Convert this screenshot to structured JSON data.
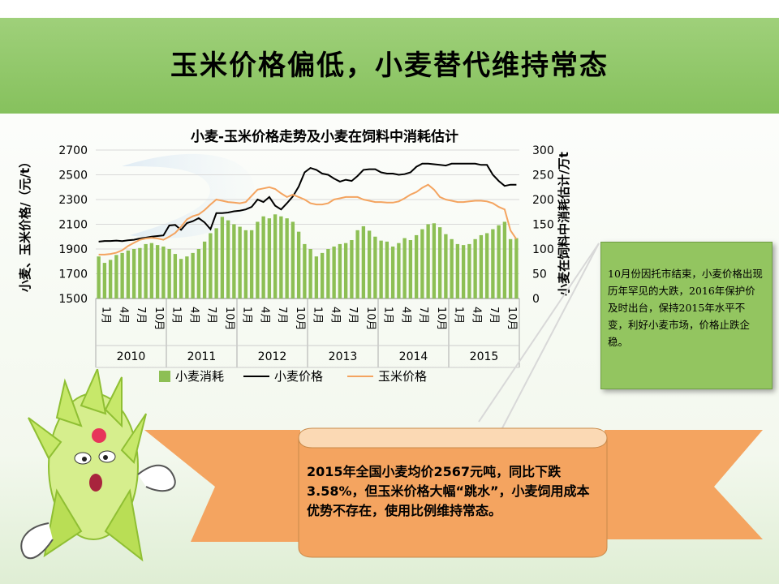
{
  "header": {
    "title": "玉米价格偏低，小麦替代维持常态"
  },
  "chart_data": {
    "type": "bar+line",
    "title": "小麦-玉米价格走势及小麦在饲料中消耗估计",
    "ylabel_left": "小麦、玉米价格/（元/t）",
    "ylabel_right": "小麦在饲料中消耗估计/万t",
    "ylim_left": [
      1500,
      2700
    ],
    "ylim_right": [
      0,
      300
    ],
    "yticks_left": [
      "2700",
      "2500",
      "2300",
      "2100",
      "1900",
      "1700",
      "1500"
    ],
    "yticks_right": [
      "300",
      "250",
      "200",
      "150",
      "100",
      "50",
      "0"
    ],
    "years": [
      "2010",
      "2011",
      "2012",
      "2013",
      "2014",
      "2015"
    ],
    "month_ticks": [
      "1月",
      "4月",
      "7月",
      "10月"
    ],
    "legend": {
      "bar": "小麦消耗",
      "wheat": "小麦价格",
      "corn": "玉米价格"
    },
    "colors": {
      "bar": "#8dbf54",
      "wheat": "#000000",
      "corn": "#f4a460"
    },
    "series": [
      {
        "name": "小麦消耗",
        "axis": "right",
        "type": "bar",
        "values": [
          85,
          72,
          78,
          88,
          92,
          97,
          100,
          102,
          110,
          112,
          108,
          105,
          100,
          90,
          80,
          85,
          92,
          100,
          115,
          132,
          142,
          165,
          158,
          150,
          145,
          138,
          138,
          155,
          166,
          162,
          170,
          166,
          162,
          155,
          135,
          110,
          100,
          85,
          92,
          100,
          105,
          110,
          112,
          118,
          138,
          146,
          137,
          125,
          117,
          115,
          105,
          112,
          122,
          118,
          128,
          140,
          150,
          152,
          144,
          130,
          120,
          110,
          108,
          110,
          120,
          128,
          132,
          140,
          148,
          155,
          120,
          122
        ]
      },
      {
        "name": "小麦价格",
        "axis": "left",
        "type": "line",
        "values": [
          1960,
          1965,
          1965,
          1968,
          1964,
          1970,
          1975,
          1985,
          1992,
          2000,
          2005,
          2010,
          2090,
          2095,
          2055,
          2110,
          2125,
          2150,
          2115,
          2060,
          2190,
          2190,
          2195,
          2205,
          2210,
          2220,
          2240,
          2300,
          2280,
          2320,
          2250,
          2220,
          2270,
          2325,
          2405,
          2520,
          2555,
          2540,
          2510,
          2500,
          2470,
          2445,
          2460,
          2450,
          2490,
          2540,
          2545,
          2545,
          2520,
          2510,
          2510,
          2500,
          2505,
          2520,
          2565,
          2590,
          2590,
          2585,
          2580,
          2575,
          2590,
          2590,
          2590,
          2590,
          2590,
          2580,
          2580,
          2500,
          2450,
          2410,
          2420,
          2420
        ]
      },
      {
        "name": "玉米价格",
        "axis": "left",
        "type": "line",
        "values": [
          1855,
          1855,
          1860,
          1870,
          1890,
          1925,
          1950,
          1975,
          1985,
          1990,
          1985,
          1975,
          2000,
          2030,
          2080,
          2140,
          2165,
          2180,
          2215,
          2260,
          2300,
          2290,
          2280,
          2275,
          2270,
          2280,
          2330,
          2380,
          2390,
          2400,
          2385,
          2350,
          2320,
          2340,
          2320,
          2300,
          2270,
          2260,
          2260,
          2270,
          2300,
          2310,
          2320,
          2320,
          2320,
          2300,
          2290,
          2280,
          2280,
          2275,
          2275,
          2285,
          2310,
          2340,
          2360,
          2395,
          2420,
          2380,
          2320,
          2300,
          2290,
          2280,
          2280,
          2285,
          2290,
          2290,
          2285,
          2270,
          2240,
          2220,
          2050,
          1980
        ]
      }
    ]
  },
  "note": {
    "text": "10月份因托市结束，小麦价格出现历年罕见的大跌，2016年保护价及时出台，保持2015年水平不变，利好小麦市场，价格止跌企稳。"
  },
  "ribbon": {
    "text": "2015年全国小麦均价2567元吨，同比下跌3.58%，但玉米价格大幅“跳水”，小麦饲用成本优势不存在，使用比例维持常态。"
  },
  "colors": {
    "banner": "#8cc463",
    "ribbon": "#f4a460",
    "note": "#93c560"
  }
}
